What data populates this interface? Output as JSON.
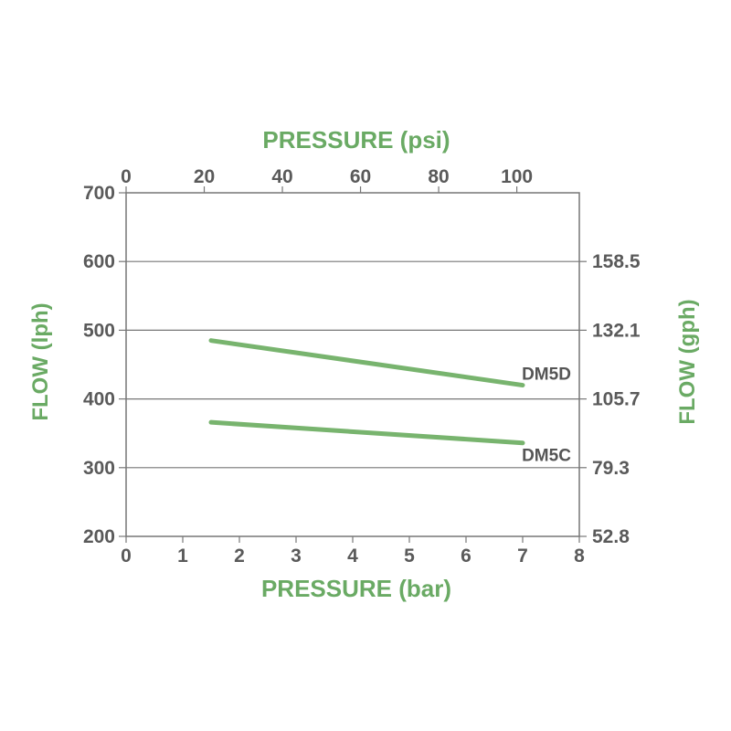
{
  "chart_data": {
    "type": "line",
    "title": "",
    "xlabel_bottom": "PRESSURE (bar)",
    "xlabel_top": "PRESSURE (psi)",
    "ylabel_left": "FLOW (lph)",
    "ylabel_right": "FLOW (gph)",
    "xlim": [
      0,
      8
    ],
    "ylim": [
      200,
      700
    ],
    "x_ticks": [
      "0",
      "1",
      "2",
      "3",
      "4",
      "5",
      "6",
      "7",
      "8"
    ],
    "x_tick_values": [
      0,
      1,
      2,
      3,
      4,
      5,
      6,
      7,
      8
    ],
    "y_ticks": [
      "200",
      "300",
      "400",
      "500",
      "600",
      "700"
    ],
    "y_tick_values": [
      200,
      300,
      400,
      500,
      600,
      700
    ],
    "top_ticks": [
      "0",
      "20",
      "40",
      "60",
      "80",
      "100"
    ],
    "top_tick_values": [
      0,
      20,
      40,
      60,
      80,
      100
    ],
    "top_xlim": [
      0,
      116
    ],
    "right_ticks": [
      "52.8",
      "79.3",
      "105.7",
      "132.1",
      "158.5"
    ],
    "right_tick_values": [
      200,
      300,
      400,
      500,
      600
    ],
    "grid": "horizontal",
    "line_color": "#78b46e",
    "series": [
      {
        "name": "DM5D",
        "x": [
          1.5,
          7
        ],
        "y": [
          485,
          420
        ]
      },
      {
        "name": "DM5C",
        "x": [
          1.5,
          7
        ],
        "y": [
          366,
          336
        ]
      }
    ]
  }
}
